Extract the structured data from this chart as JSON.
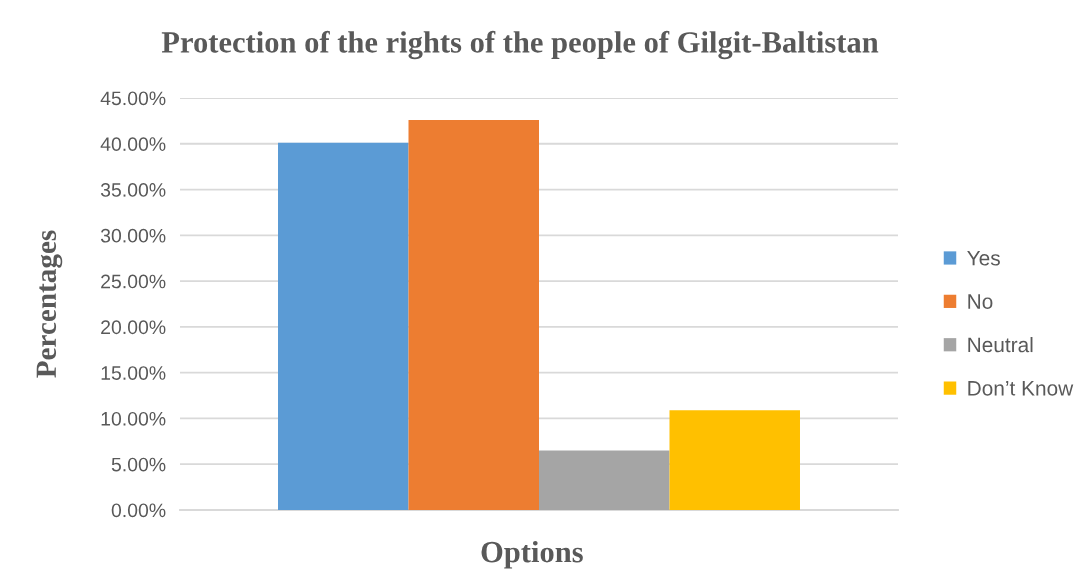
{
  "chart_data": {
    "type": "bar",
    "title": "Protection of the rights of the people of Gilgit-Baltistan",
    "xlabel": "Options",
    "ylabel": "Percentages",
    "categories": [
      null
    ],
    "series": [
      {
        "name": "Yes",
        "color": "#5b9bd5",
        "values": [
          40.1
        ]
      },
      {
        "name": "No",
        "color": "#ed7d31",
        "values": [
          42.6
        ]
      },
      {
        "name": "Neutral",
        "color": "#a5a5a5",
        "values": [
          6.5
        ]
      },
      {
        "name": "Don’t Know",
        "color": "#ffc000",
        "values": [
          10.9
        ]
      }
    ],
    "ylim": [
      0,
      45
    ],
    "yticks": [
      {
        "value": 0,
        "label": "0.00%"
      },
      {
        "value": 5,
        "label": "5.00%"
      },
      {
        "value": 10,
        "label": "10.00%"
      },
      {
        "value": 15,
        "label": "15.00%"
      },
      {
        "value": 20,
        "label": "20.00%"
      },
      {
        "value": 25,
        "label": "25.00%"
      },
      {
        "value": 30,
        "label": "30.00%"
      },
      {
        "value": 35,
        "label": "35.00%"
      },
      {
        "value": 40,
        "label": "40.00%"
      },
      {
        "value": 45,
        "label": "45.00%"
      }
    ],
    "grid": "y",
    "legend": "right",
    "tick_labels": "y"
  }
}
